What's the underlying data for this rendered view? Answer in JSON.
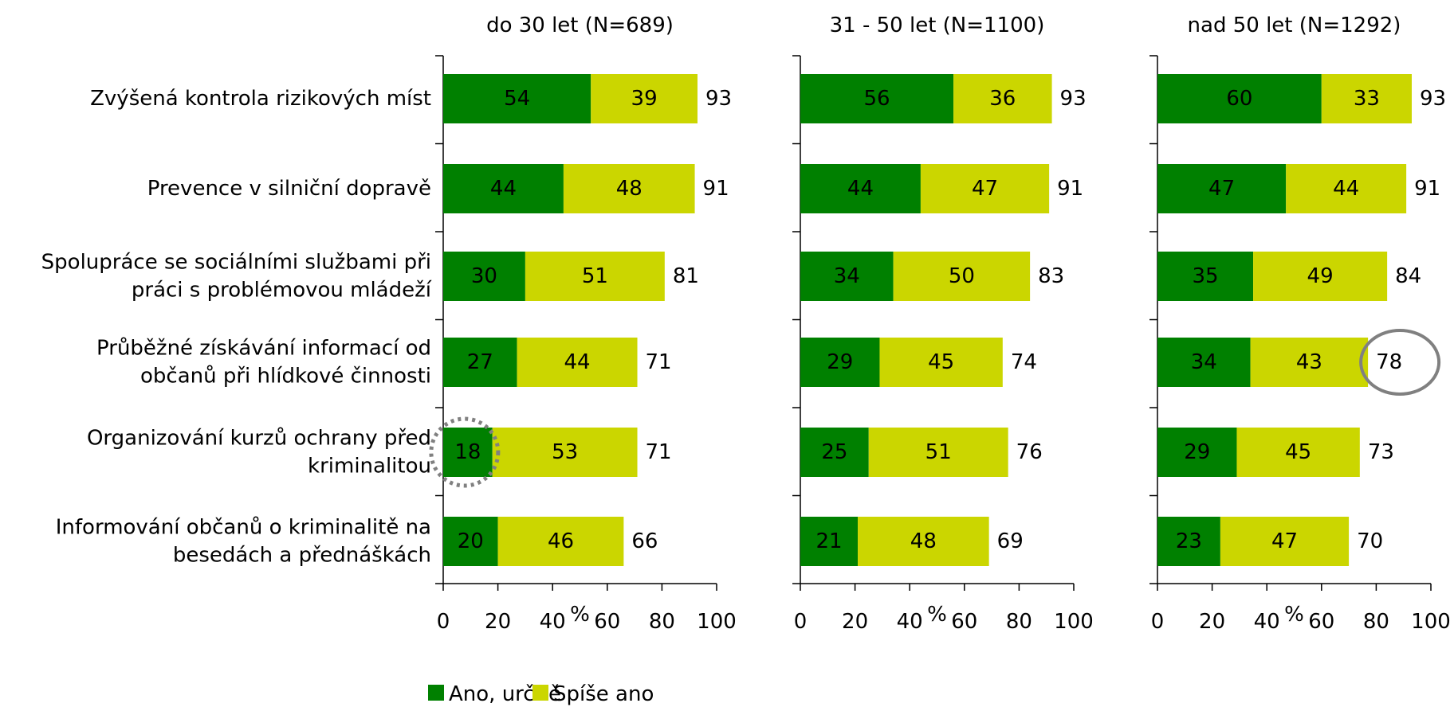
{
  "chart_data": {
    "type": "bar",
    "orientation": "horizontal",
    "stacked": true,
    "categories": [
      [
        "Zvýšená kontrola rizikových míst"
      ],
      [
        "Prevence v silniční dopravě"
      ],
      [
        "Spolupráce se sociálními službami při",
        "práci s problémovou mládeží"
      ],
      [
        "Průběžné získávání informací od",
        "občanů při hlídkové činnosti"
      ],
      [
        "Organizování kurzů ochrany před",
        "kriminalitou"
      ],
      [
        "Informování občanů o kriminalitě na",
        "besedách a přednáškách"
      ]
    ],
    "panels": [
      {
        "title": "do 30 let (N=689)",
        "series": [
          {
            "name": "Ano, určitě",
            "values": [
              54,
              44,
              30,
              27,
              18,
              20
            ]
          },
          {
            "name": "Spíše ano",
            "values": [
              39,
              48,
              51,
              44,
              53,
              46
            ]
          }
        ],
        "totals": [
          93,
          91,
          81,
          71,
          71,
          66
        ]
      },
      {
        "title": "31 - 50 let (N=1100)",
        "series": [
          {
            "name": "Ano, určitě",
            "values": [
              56,
              44,
              34,
              29,
              25,
              21
            ]
          },
          {
            "name": "Spíše ano",
            "values": [
              36,
              47,
              50,
              45,
              51,
              48
            ]
          }
        ],
        "totals": [
          93,
          91,
          83,
          74,
          76,
          69
        ]
      },
      {
        "title": "nad 50 let (N=1292)",
        "series": [
          {
            "name": "Ano, určitě",
            "values": [
              60,
              47,
              35,
              34,
              29,
              23
            ]
          },
          {
            "name": "Spíše ano",
            "values": [
              33,
              44,
              49,
              43,
              45,
              47
            ]
          }
        ],
        "totals": [
          93,
          91,
          84,
          78,
          73,
          70
        ]
      }
    ],
    "xlabel": "%",
    "xlim": [
      0,
      100
    ],
    "xticks": [
      0,
      20,
      40,
      60,
      80,
      100
    ],
    "grid": false,
    "legend": {
      "placement": "bottom-center",
      "items": [
        {
          "name": "Ano, určitě",
          "color": "#008000"
        },
        {
          "name": "Spíše ano",
          "color": "#cbd600"
        }
      ]
    },
    "annotations": [
      {
        "panel": 0,
        "category_index": 4,
        "target": "Ano, určitě",
        "shape": "dotted-circle",
        "color": "#808080"
      },
      {
        "panel": 2,
        "category_index": 3,
        "target": "total",
        "shape": "solid-circle",
        "color": "#808080"
      }
    ]
  }
}
